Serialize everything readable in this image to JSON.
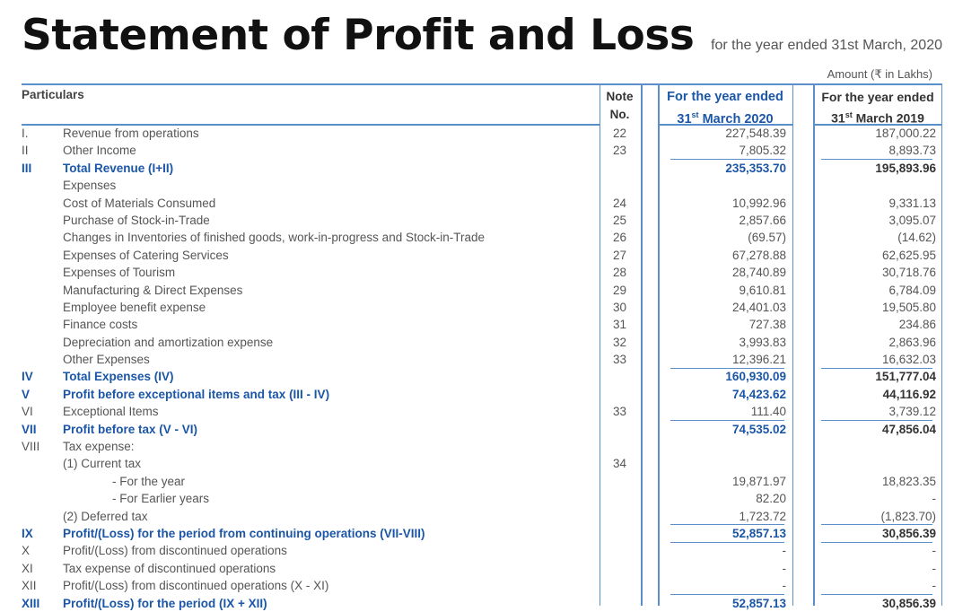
{
  "title": "Statement of Profit and Loss",
  "subtitle": "for the year ended 31st March, 2020",
  "amount_note": "Amount (₹ in Lakhs)",
  "headers": {
    "particulars": "Particulars",
    "note_line1": "Note",
    "note_line2": "No.",
    "cy_line1": "For the year ended",
    "cy_line2_prefix": "31",
    "cy_line2_sup": "st",
    "cy_line2_suffix": " March 2020",
    "py_line1": "For the year ended",
    "py_line2_prefix": "31",
    "py_line2_sup": "st",
    "py_line2_suffix": " March 2019"
  },
  "rows": [
    {
      "roman": "I.",
      "label": "Revenue from operations",
      "note": "22",
      "cy": "227,548.39",
      "py": "187,000.22",
      "bold": false
    },
    {
      "roman": "II",
      "label": "Other Income",
      "note": "23",
      "cy": "7,805.32",
      "py": "8,893.73",
      "bold": false
    },
    {
      "roman": "III",
      "label": "Total Revenue (I+II)",
      "note": "",
      "cy": "235,353.70",
      "py": "195,893.96",
      "bold": true
    },
    {
      "roman": "",
      "label": "Expenses",
      "note": "",
      "cy": "",
      "py": "",
      "bold": false
    },
    {
      "roman": "",
      "label": "Cost of Materials Consumed",
      "note": "24",
      "cy": "10,992.96",
      "py": "9,331.13",
      "bold": false
    },
    {
      "roman": "",
      "label": "Purchase of Stock-in-Trade",
      "note": "25",
      "cy": "2,857.66",
      "py": "3,095.07",
      "bold": false
    },
    {
      "roman": "",
      "label": "Changes in Inventories of finished goods, work-in-progress and Stock-in-Trade",
      "note": "26",
      "cy": "(69.57)",
      "py": "(14.62)",
      "bold": false
    },
    {
      "roman": "",
      "label": "Expenses of Catering Services",
      "note": "27",
      "cy": "67,278.88",
      "py": "62,625.95",
      "bold": false
    },
    {
      "roman": "",
      "label": "Expenses of Tourism",
      "note": "28",
      "cy": "28,740.89",
      "py": "30,718.76",
      "bold": false
    },
    {
      "roman": "",
      "label": "Manufacturing & Direct Expenses",
      "note": "29",
      "cy": "9,610.81",
      "py": "6,784.09",
      "bold": false
    },
    {
      "roman": "",
      "label": "Employee benefit expense",
      "note": "30",
      "cy": "24,401.03",
      "py": "19,505.80",
      "bold": false
    },
    {
      "roman": "",
      "label": "Finance costs",
      "note": "31",
      "cy": "727.38",
      "py": "234.86",
      "bold": false
    },
    {
      "roman": "",
      "label": "Depreciation and amortization expense",
      "note": "32",
      "cy": "3,993.83",
      "py": "2,863.96",
      "bold": false
    },
    {
      "roman": "",
      "label": "Other Expenses",
      "note": "33",
      "cy": "12,396.21",
      "py": "16,632.03",
      "bold": false
    },
    {
      "roman": "IV",
      "label": "Total Expenses (IV)",
      "note": "",
      "cy": "160,930.09",
      "py": "151,777.04",
      "bold": true
    },
    {
      "roman": "V",
      "label": "Profit before exceptional items and tax (III - IV)",
      "note": "",
      "cy": "74,423.62",
      "py": "44,116.92",
      "bold": true
    },
    {
      "roman": "VI",
      "label": "Exceptional Items",
      "note": "33",
      "cy": "111.40",
      "py": "3,739.12",
      "bold": false
    },
    {
      "roman": "VII",
      "label": "Profit before tax (V - VI)",
      "note": "",
      "cy": "74,535.02",
      "py": "47,856.04",
      "bold": true
    },
    {
      "roman": "VIII",
      "label": "Tax expense:",
      "note": "",
      "cy": "",
      "py": "",
      "bold": false
    },
    {
      "roman": "",
      "label": "(1)   Current tax",
      "note": "34",
      "cy": "",
      "py": "",
      "bold": false
    },
    {
      "roman": "",
      "label": "- For the year",
      "note": "",
      "cy": "19,871.97",
      "py": "18,823.35",
      "bold": false,
      "indent": 2
    },
    {
      "roman": "",
      "label": "- For Earlier years",
      "note": "",
      "cy": "82.20",
      "py": "-",
      "bold": false,
      "indent": 2
    },
    {
      "roman": "",
      "label": "(2)  Deferred tax",
      "note": "",
      "cy": "1,723.72",
      "py": "(1,823.70)",
      "bold": false
    },
    {
      "roman": "IX",
      "label": "Profit/(Loss) for the period from continuing operations (VII-VIII)",
      "note": "",
      "cy": "52,857.13",
      "py": "30,856.39",
      "bold": true
    },
    {
      "roman": "X",
      "label": "Profit/(Loss) from discontinued operations",
      "note": "",
      "cy": "-",
      "py": "-",
      "bold": false
    },
    {
      "roman": "XI",
      "label": "Tax expense of discontinued operations",
      "note": "",
      "cy": "-",
      "py": "-",
      "bold": false
    },
    {
      "roman": "XII",
      "label": "Profit/(Loss) from discontinued operations (X - XI)",
      "note": "",
      "cy": "-",
      "py": "-",
      "bold": false
    },
    {
      "roman": "XIII",
      "label": "Profit/(Loss) for the period (IX + XII)",
      "note": "",
      "cy": "52,857.13",
      "py": "30,856.39",
      "bold": true
    }
  ]
}
